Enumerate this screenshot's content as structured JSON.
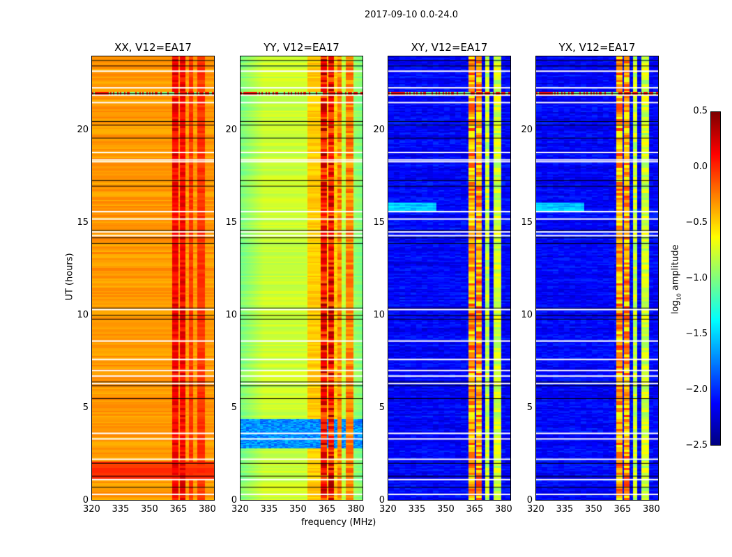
{
  "chart_data": {
    "type": "heatmap",
    "title": "2017-09-10 0.0-24.0",
    "xlabel": "frequency (MHz)",
    "ylabel": "UT (hours)",
    "xlim": [
      320,
      384
    ],
    "ylim": [
      0,
      24
    ],
    "xticks": [
      "320",
      "335",
      "350",
      "365",
      "380"
    ],
    "yticks": [
      "0",
      "5",
      "10",
      "15",
      "20"
    ],
    "colorbar": {
      "label": "log10 amplitude",
      "label_main": "log",
      "label_sub": "10",
      "label_rest": " amplitude",
      "range": [
        -2.5,
        0.5
      ],
      "ticks": [
        "0.5",
        "0.0",
        "−0.5",
        "−1.0",
        "−1.5",
        "−2.0",
        "−2.5"
      ],
      "colormap": "jet"
    },
    "panels": [
      {
        "title": "XX, V12=EA17",
        "base": -0.4,
        "band_level": 0.2
      },
      {
        "title": "YY, V12=EA17",
        "base": -0.85,
        "band_level": 0.25
      },
      {
        "title": "XY, V12=EA17",
        "base": -2.3,
        "band_level": -0.2
      },
      {
        "title": "YX, V12=EA17",
        "base": -2.3,
        "band_level": -0.2
      }
    ],
    "rfi_bands_mhz": [
      [
        362,
        365
      ],
      [
        366,
        369
      ],
      [
        370.5,
        373
      ],
      [
        375,
        379
      ]
    ],
    "flagged_hours_white": [
      0.3,
      1.1,
      2.2,
      3.3,
      3.6,
      6.3,
      6.7,
      7.0,
      7.6,
      8.6,
      10.3,
      14.3,
      14.5,
      15.2,
      15.6,
      18.3,
      18.4,
      18.8,
      21.5,
      21.9,
      22.3,
      23.2
    ],
    "flagged_hours_black": [
      0.7,
      1.3,
      2.0,
      5.5,
      6.2,
      6.4,
      9.8,
      10.0,
      10.4,
      13.9,
      14.2,
      14.6,
      17.0,
      17.3,
      19.6,
      20.3,
      20.5,
      22.0,
      23.5,
      23.8
    ]
  }
}
